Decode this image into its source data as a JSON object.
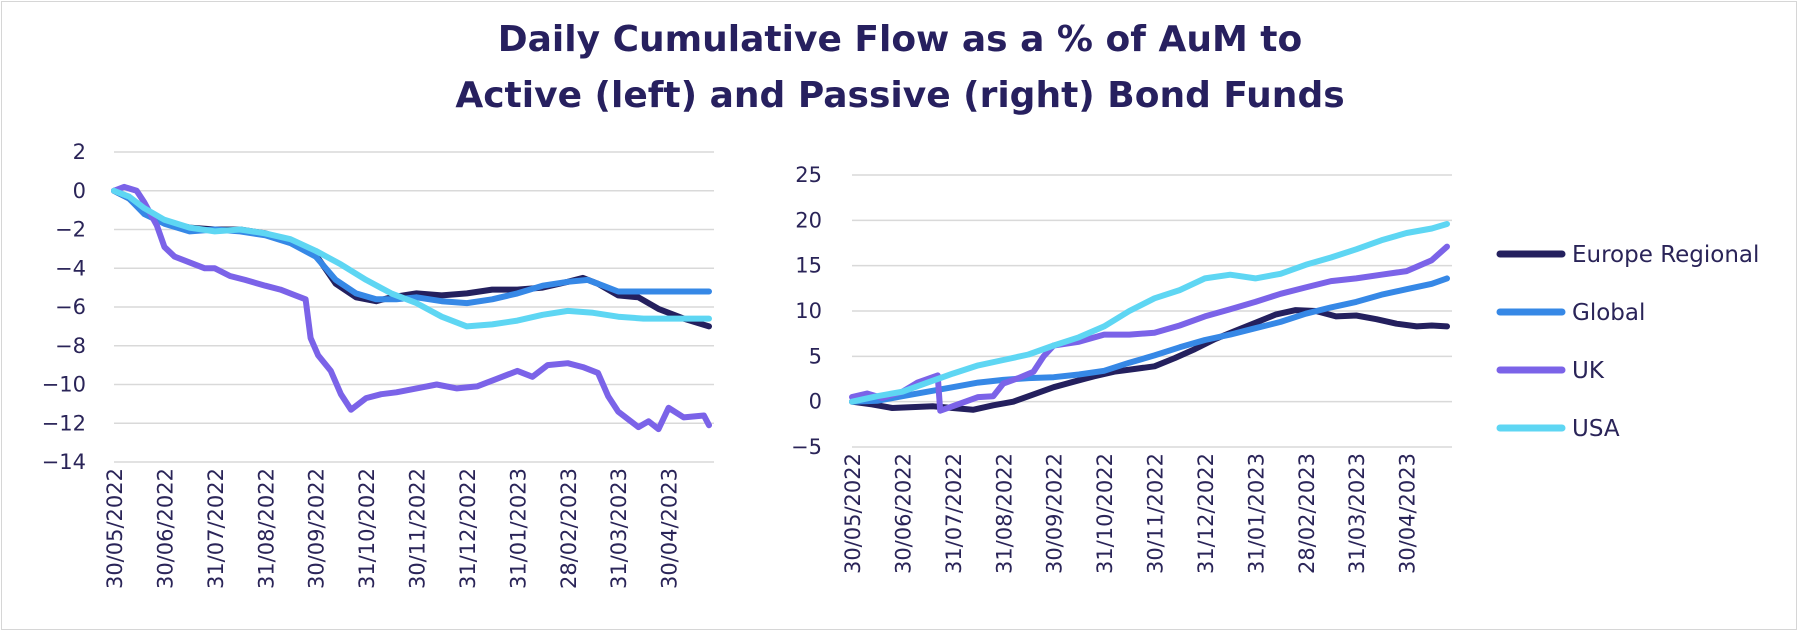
{
  "title_line1": "Daily Cumulative Flow as a % of AuM to",
  "title_line2": "Active (left) and Passive (right) Bond Funds",
  "colors": {
    "Europe Regional": "#24205e",
    "Global": "#3688e6",
    "UK": "#7b63e8",
    "USA": "#5ed6f3",
    "grid": "#d9d9d9",
    "text": "#2a2458"
  },
  "legend": [
    "Europe Regional",
    "Global",
    "UK",
    "USA"
  ],
  "chart_data": [
    {
      "type": "line",
      "title": "",
      "x_categories": [
        "30/05/2022",
        "30/06/2022",
        "31/07/2022",
        "31/08/2022",
        "30/09/2022",
        "31/10/2022",
        "30/11/2022",
        "31/12/2022",
        "31/01/2023",
        "28/02/2023",
        "31/03/2023",
        "30/04/2023"
      ],
      "ylim": [
        -14,
        2
      ],
      "yticks": [
        2,
        0,
        -2,
        -4,
        -6,
        -8,
        -10,
        -12,
        -14
      ],
      "series": [
        {
          "name": "Europe Regional",
          "points": [
            [
              0,
              0
            ],
            [
              0.3,
              -0.4
            ],
            [
              0.6,
              -1.1
            ],
            [
              1,
              -1.6
            ],
            [
              1.5,
              -1.9
            ],
            [
              2,
              -2.0
            ],
            [
              2.5,
              -2.0
            ],
            [
              3,
              -2.2
            ],
            [
              3.5,
              -2.6
            ],
            [
              4,
              -3.3
            ],
            [
              4.4,
              -4.8
            ],
            [
              4.8,
              -5.5
            ],
            [
              5.2,
              -5.7
            ],
            [
              5.5,
              -5.5
            ],
            [
              6,
              -5.3
            ],
            [
              6.5,
              -5.4
            ],
            [
              7,
              -5.3
            ],
            [
              7.5,
              -5.1
            ],
            [
              8,
              -5.1
            ],
            [
              8.5,
              -5.0
            ],
            [
              9,
              -4.7
            ],
            [
              9.3,
              -4.5
            ],
            [
              9.6,
              -4.8
            ],
            [
              10,
              -5.4
            ],
            [
              10.4,
              -5.5
            ],
            [
              10.8,
              -6.1
            ],
            [
              11.3,
              -6.6
            ],
            [
              11.8,
              -7.0
            ]
          ]
        },
        {
          "name": "Global",
          "points": [
            [
              0,
              0
            ],
            [
              0.3,
              -0.4
            ],
            [
              0.6,
              -1.2
            ],
            [
              1,
              -1.7
            ],
            [
              1.5,
              -2.1
            ],
            [
              2,
              -2.0
            ],
            [
              2.5,
              -2.1
            ],
            [
              3,
              -2.3
            ],
            [
              3.5,
              -2.7
            ],
            [
              4,
              -3.4
            ],
            [
              4.4,
              -4.6
            ],
            [
              4.8,
              -5.3
            ],
            [
              5.2,
              -5.6
            ],
            [
              5.6,
              -5.6
            ],
            [
              6,
              -5.5
            ],
            [
              6.5,
              -5.7
            ],
            [
              7,
              -5.8
            ],
            [
              7.5,
              -5.6
            ],
            [
              8,
              -5.3
            ],
            [
              8.5,
              -4.9
            ],
            [
              9,
              -4.7
            ],
            [
              9.4,
              -4.6
            ],
            [
              9.7,
              -4.9
            ],
            [
              10,
              -5.2
            ],
            [
              10.5,
              -5.2
            ],
            [
              11,
              -5.2
            ],
            [
              11.5,
              -5.2
            ],
            [
              11.8,
              -5.2
            ]
          ]
        },
        {
          "name": "UK",
          "points": [
            [
              0,
              0
            ],
            [
              0.2,
              0.2
            ],
            [
              0.45,
              0
            ],
            [
              0.6,
              -0.6
            ],
            [
              0.85,
              -1.8
            ],
            [
              1,
              -2.9
            ],
            [
              1.2,
              -3.4
            ],
            [
              1.5,
              -3.7
            ],
            [
              1.8,
              -4.0
            ],
            [
              2,
              -4.0
            ],
            [
              2.3,
              -4.4
            ],
            [
              2.6,
              -4.6
            ],
            [
              3,
              -4.9
            ],
            [
              3.3,
              -5.1
            ],
            [
              3.6,
              -5.4
            ],
            [
              3.8,
              -5.6
            ],
            [
              3.9,
              -7.6
            ],
            [
              4.05,
              -8.5
            ],
            [
              4.3,
              -9.3
            ],
            [
              4.5,
              -10.5
            ],
            [
              4.7,
              -11.3
            ],
            [
              5,
              -10.7
            ],
            [
              5.3,
              -10.5
            ],
            [
              5.6,
              -10.4
            ],
            [
              6,
              -10.2
            ],
            [
              6.4,
              -10.0
            ],
            [
              6.8,
              -10.2
            ],
            [
              7.2,
              -10.1
            ],
            [
              7.6,
              -9.7
            ],
            [
              8,
              -9.3
            ],
            [
              8.3,
              -9.6
            ],
            [
              8.6,
              -9.0
            ],
            [
              9,
              -8.9
            ],
            [
              9.3,
              -9.1
            ],
            [
              9.6,
              -9.4
            ],
            [
              9.8,
              -10.6
            ],
            [
              10,
              -11.4
            ],
            [
              10.2,
              -11.8
            ],
            [
              10.4,
              -12.2
            ],
            [
              10.6,
              -11.9
            ],
            [
              10.8,
              -12.3
            ],
            [
              11.0,
              -11.2
            ],
            [
              11.3,
              -11.7
            ],
            [
              11.7,
              -11.6
            ],
            [
              11.8,
              -12.1
            ]
          ]
        },
        {
          "name": "USA",
          "points": [
            [
              0,
              0
            ],
            [
              0.3,
              -0.3
            ],
            [
              0.6,
              -0.9
            ],
            [
              1,
              -1.5
            ],
            [
              1.5,
              -1.9
            ],
            [
              2,
              -2.1
            ],
            [
              2.5,
              -2.0
            ],
            [
              3,
              -2.2
            ],
            [
              3.5,
              -2.5
            ],
            [
              4,
              -3.1
            ],
            [
              4.5,
              -3.8
            ],
            [
              5,
              -4.6
            ],
            [
              5.5,
              -5.3
            ],
            [
              6,
              -5.8
            ],
            [
              6.5,
              -6.5
            ],
            [
              7,
              -7.0
            ],
            [
              7.5,
              -6.9
            ],
            [
              8,
              -6.7
            ],
            [
              8.5,
              -6.4
            ],
            [
              9,
              -6.2
            ],
            [
              9.5,
              -6.3
            ],
            [
              10,
              -6.5
            ],
            [
              10.5,
              -6.6
            ],
            [
              11,
              -6.6
            ],
            [
              11.5,
              -6.6
            ],
            [
              11.8,
              -6.6
            ]
          ]
        }
      ]
    },
    {
      "type": "line",
      "title": "",
      "x_categories": [
        "30/05/2022",
        "30/06/2022",
        "31/07/2022",
        "31/08/2022",
        "30/09/2022",
        "31/10/2022",
        "30/11/2022",
        "31/12/2022",
        "31/01/2023",
        "28/02/2023",
        "31/03/2023",
        "30/04/2023"
      ],
      "ylim": [
        -5,
        25
      ],
      "yticks": [
        25,
        20,
        15,
        10,
        5,
        0,
        -5
      ],
      "series": [
        {
          "name": "Europe Regional",
          "points": [
            [
              0,
              0
            ],
            [
              0.4,
              -0.3
            ],
            [
              0.8,
              -0.7
            ],
            [
              1.2,
              -0.6
            ],
            [
              1.6,
              -0.5
            ],
            [
              2,
              -0.7
            ],
            [
              2.4,
              -0.9
            ],
            [
              2.8,
              -0.4
            ],
            [
              3.2,
              0
            ],
            [
              3.6,
              0.8
            ],
            [
              4,
              1.6
            ],
            [
              4.4,
              2.2
            ],
            [
              4.8,
              2.8
            ],
            [
              5.2,
              3.3
            ],
            [
              5.6,
              3.6
            ],
            [
              6,
              3.9
            ],
            [
              6.4,
              4.8
            ],
            [
              6.8,
              5.8
            ],
            [
              7.2,
              6.9
            ],
            [
              7.6,
              7.8
            ],
            [
              8,
              8.7
            ],
            [
              8.4,
              9.6
            ],
            [
              8.8,
              10.1
            ],
            [
              9.2,
              10.0
            ],
            [
              9.6,
              9.4
            ],
            [
              10,
              9.5
            ],
            [
              10.4,
              9.1
            ],
            [
              10.8,
              8.6
            ],
            [
              11.2,
              8.3
            ],
            [
              11.5,
              8.4
            ],
            [
              11.8,
              8.3
            ]
          ]
        },
        {
          "name": "Global",
          "points": [
            [
              0,
              0
            ],
            [
              0.5,
              0.1
            ],
            [
              1,
              0.6
            ],
            [
              1.5,
              1.1
            ],
            [
              2,
              1.6
            ],
            [
              2.5,
              2.1
            ],
            [
              3,
              2.4
            ],
            [
              3.5,
              2.6
            ],
            [
              4,
              2.7
            ],
            [
              4.5,
              3.0
            ],
            [
              5,
              3.4
            ],
            [
              5.5,
              4.3
            ],
            [
              6,
              5.1
            ],
            [
              6.5,
              6.0
            ],
            [
              7,
              6.8
            ],
            [
              7.5,
              7.4
            ],
            [
              8,
              8.1
            ],
            [
              8.5,
              8.8
            ],
            [
              9,
              9.7
            ],
            [
              9.5,
              10.4
            ],
            [
              10,
              11.0
            ],
            [
              10.5,
              11.8
            ],
            [
              11,
              12.4
            ],
            [
              11.5,
              13.0
            ],
            [
              11.8,
              13.6
            ]
          ]
        },
        {
          "name": "UK",
          "points": [
            [
              0,
              0.5
            ],
            [
              0.3,
              0.9
            ],
            [
              0.6,
              0.4
            ],
            [
              1,
              1.1
            ],
            [
              1.3,
              2.1
            ],
            [
              1.6,
              2.7
            ],
            [
              1.7,
              2.9
            ],
            [
              1.75,
              -1.0
            ],
            [
              2,
              -0.5
            ],
            [
              2.5,
              0.5
            ],
            [
              2.8,
              0.6
            ],
            [
              3,
              2.0
            ],
            [
              3.3,
              2.6
            ],
            [
              3.6,
              3.3
            ],
            [
              3.8,
              5.0
            ],
            [
              4,
              6.2
            ],
            [
              4.5,
              6.6
            ],
            [
              5,
              7.4
            ],
            [
              5.5,
              7.4
            ],
            [
              6,
              7.6
            ],
            [
              6.5,
              8.4
            ],
            [
              7,
              9.4
            ],
            [
              7.5,
              10.2
            ],
            [
              8,
              11.0
            ],
            [
              8.5,
              11.9
            ],
            [
              9,
              12.6
            ],
            [
              9.5,
              13.3
            ],
            [
              10,
              13.6
            ],
            [
              10.5,
              14.0
            ],
            [
              11,
              14.4
            ],
            [
              11.5,
              15.6
            ],
            [
              11.8,
              17.1
            ]
          ]
        },
        {
          "name": "USA",
          "points": [
            [
              0,
              0
            ],
            [
              0.5,
              0.6
            ],
            [
              1,
              1.1
            ],
            [
              1.5,
              2.1
            ],
            [
              2,
              3.1
            ],
            [
              2.5,
              4.0
            ],
            [
              3,
              4.6
            ],
            [
              3.5,
              5.2
            ],
            [
              4,
              6.2
            ],
            [
              4.5,
              7.1
            ],
            [
              5,
              8.3
            ],
            [
              5.5,
              10.0
            ],
            [
              6,
              11.4
            ],
            [
              6.5,
              12.3
            ],
            [
              7,
              13.6
            ],
            [
              7.5,
              14.0
            ],
            [
              8,
              13.6
            ],
            [
              8.5,
              14.1
            ],
            [
              9,
              15.1
            ],
            [
              9.5,
              15.9
            ],
            [
              10,
              16.8
            ],
            [
              10.5,
              17.8
            ],
            [
              11,
              18.6
            ],
            [
              11.5,
              19.1
            ],
            [
              11.8,
              19.6
            ]
          ]
        }
      ]
    }
  ]
}
